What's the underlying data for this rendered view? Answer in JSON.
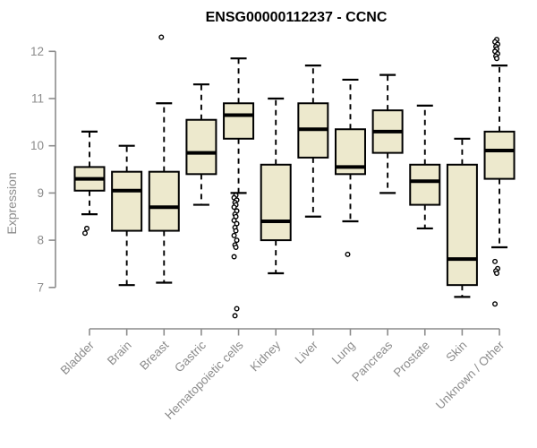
{
  "chart_data": {
    "type": "boxplot",
    "title": "ENSG00000112237 - CCNC",
    "xlabel": "",
    "ylabel": "Expression",
    "ylim": [
      6.3,
      12.4
    ],
    "yticks": [
      7,
      8,
      9,
      10,
      11,
      12
    ],
    "grid": false,
    "legend": "none",
    "categories": [
      "Bladder",
      "Brain",
      "Breast",
      "Gastric",
      "Hematopoietic cells",
      "Kidney",
      "Liver",
      "Lung",
      "Pancreas",
      "Prostate",
      "Skin",
      "Unknown / Other"
    ],
    "boxes": [
      {
        "category": "Bladder",
        "whisker_low": 8.55,
        "q1": 9.05,
        "median": 9.3,
        "q3": 9.55,
        "whisker_high": 10.3,
        "outliers": [
          8.25,
          8.15
        ]
      },
      {
        "category": "Brain",
        "whisker_low": 7.05,
        "q1": 8.2,
        "median": 9.05,
        "q3": 9.45,
        "whisker_high": 10.0,
        "outliers": []
      },
      {
        "category": "Breast",
        "whisker_low": 7.1,
        "q1": 8.2,
        "median": 8.7,
        "q3": 9.45,
        "whisker_high": 10.9,
        "outliers": [
          12.3
        ]
      },
      {
        "category": "Gastric",
        "whisker_low": 8.75,
        "q1": 9.4,
        "median": 9.85,
        "q3": 10.55,
        "whisker_high": 11.3,
        "outliers": []
      },
      {
        "category": "Hematopoietic cells",
        "whisker_low": 9.0,
        "q1": 10.15,
        "median": 10.65,
        "q3": 10.9,
        "whisker_high": 11.85,
        "outliers": [
          8.95,
          8.9,
          8.85,
          8.8,
          8.75,
          8.7,
          8.62,
          8.55,
          8.5,
          8.42,
          8.35,
          8.27,
          8.2,
          8.1,
          8.0,
          7.9,
          7.85,
          7.65,
          6.55,
          6.4
        ]
      },
      {
        "category": "Kidney",
        "whisker_low": 7.3,
        "q1": 8.0,
        "median": 8.4,
        "q3": 9.6,
        "whisker_high": 11.0,
        "outliers": []
      },
      {
        "category": "Liver",
        "whisker_low": 8.5,
        "q1": 9.75,
        "median": 10.35,
        "q3": 10.9,
        "whisker_high": 11.7,
        "outliers": []
      },
      {
        "category": "Lung",
        "whisker_low": 8.4,
        "q1": 9.4,
        "median": 9.55,
        "q3": 10.35,
        "whisker_high": 11.4,
        "outliers": [
          7.7
        ]
      },
      {
        "category": "Pancreas",
        "whisker_low": 9.0,
        "q1": 9.85,
        "median": 10.3,
        "q3": 10.75,
        "whisker_high": 11.5,
        "outliers": []
      },
      {
        "category": "Prostate",
        "whisker_low": 8.25,
        "q1": 8.75,
        "median": 9.25,
        "q3": 9.6,
        "whisker_high": 10.85,
        "outliers": []
      },
      {
        "category": "Skin",
        "whisker_low": 6.8,
        "q1": 7.05,
        "median": 7.6,
        "q3": 9.6,
        "whisker_high": 10.15,
        "outliers": []
      },
      {
        "category": "Unknown / Other",
        "whisker_low": 7.85,
        "q1": 9.3,
        "median": 9.9,
        "q3": 10.3,
        "whisker_high": 11.7,
        "outliers": [
          12.25,
          12.2,
          12.15,
          12.1,
          12.05,
          12.0,
          11.95,
          11.9,
          11.85,
          7.55,
          7.4,
          7.35,
          7.3,
          6.65
        ]
      }
    ],
    "colors": {
      "box_fill": "#ede9cd",
      "box_border": "#000000",
      "median": "#000000",
      "whisker": "#000000",
      "outlier_stroke": "#000000",
      "outlier_fill": "#ffffff",
      "axis": "#8c8c8c",
      "tick_label": "#8c8c8c",
      "title": "#000000",
      "background": "#ffffff"
    }
  }
}
